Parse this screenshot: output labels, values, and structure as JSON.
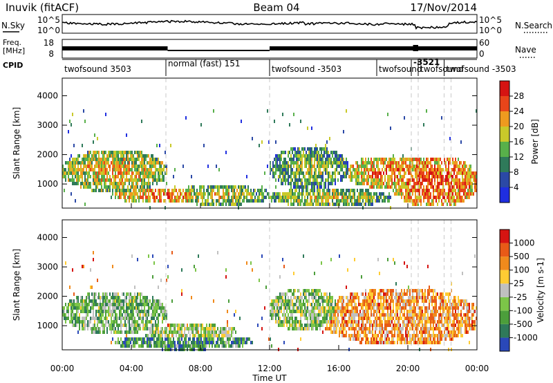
{
  "header": {
    "station": "Inuvik (fitACF)",
    "beam": "Beam 04",
    "date": "17/Nov/2014"
  },
  "left_labels": {
    "nsky": "N.Sky",
    "freq_l1": "Freq.",
    "freq_l2": "[MHz]",
    "cpid": "CPID"
  },
  "right_labels": {
    "nsearch": "N.Search",
    "nave": "Nave"
  },
  "noise_panel": {
    "left_ticks": [
      "10^5",
      "10^0"
    ],
    "right_ticks": [
      "10^5",
      "10^0"
    ]
  },
  "freq_panel": {
    "left_ticks": [
      "18",
      "8"
    ],
    "right_ticks": [
      "60",
      "0"
    ]
  },
  "cpid_segments": [
    {
      "label": "twofsound 3503",
      "start_h": 0.0,
      "end_h": 6.0
    },
    {
      "label": "normal (fast) 151",
      "start_h": 6.0,
      "end_h": 12.0
    },
    {
      "label": "twofsound -3503",
      "start_h": 12.0,
      "end_h": 18.2
    },
    {
      "label": "twofsound",
      "start_h": 18.2,
      "end_h": 20.2
    },
    {
      "label": "-3521",
      "start_h": 20.2,
      "end_h": 20.6
    },
    {
      "label": "twofsound",
      "start_h": 20.6,
      "end_h": 22.1
    },
    {
      "label": "twofsound -3503",
      "start_h": 22.1,
      "end_h": 24.0
    }
  ],
  "x_axis": {
    "title": "Time UT",
    "ticks": [
      "00:00",
      "04:00",
      "08:00",
      "12:00",
      "16:00",
      "20:00",
      "00:00"
    ]
  },
  "chart_data": [
    {
      "type": "heatmap",
      "name": "Power",
      "ylabel": "Slant Range [km]",
      "ylim": [
        180,
        4600
      ],
      "yticks": [
        "1000",
        "2000",
        "3000",
        "4000"
      ],
      "colorbar_label": "Power [dB]",
      "colorbar_ticks": [
        "4",
        "8",
        "12",
        "16",
        "20",
        "24",
        "28"
      ],
      "colorscale": [
        "#1f2ee0",
        "#2b49a6",
        "#2f7a5a",
        "#58b04a",
        "#c9c92a",
        "#ee9a1f",
        "#e8451a",
        "#d61412"
      ],
      "regions": [
        {
          "t": [
            0.0,
            6.0
          ],
          "r": [
            800,
            2200
          ],
          "level": 0.7
        },
        {
          "t": [
            3.0,
            9.0
          ],
          "r": [
            400,
            900
          ],
          "level": 0.82
        },
        {
          "t": [
            6.0,
            12.0
          ],
          "r": [
            350,
            1000
          ],
          "level": 0.62
        },
        {
          "t": [
            12.0,
            16.5
          ],
          "r": [
            900,
            2300
          ],
          "level": 0.55
        },
        {
          "t": [
            12.0,
            19.0
          ],
          "r": [
            300,
            900
          ],
          "level": 0.62
        },
        {
          "t": [
            16.5,
            21.0
          ],
          "r": [
            900,
            2000
          ],
          "level": 0.8
        },
        {
          "t": [
            19.0,
            24.0
          ],
          "r": [
            300,
            2000
          ],
          "level": 0.88
        }
      ]
    },
    {
      "type": "heatmap",
      "name": "Velocity",
      "ylabel": "Slant Range [km]",
      "ylim": [
        180,
        4600
      ],
      "yticks": [
        "1000",
        "2000",
        "3000",
        "4000"
      ],
      "colorbar_label": "Velocity [m s-1]",
      "colorbar_ticks": [
        "1000",
        "500",
        "100",
        "25",
        "-25",
        "-100",
        "-500",
        "-1000"
      ],
      "colorscale": [
        "#2a48b8",
        "#2f7a5a",
        "#4c9e3b",
        "#7cc548",
        "#c0c0c0",
        "#ffcc33",
        "#f08a1c",
        "#e85a17",
        "#d61412"
      ],
      "regions": [
        {
          "t": [
            0.0,
            6.0
          ],
          "r": [
            800,
            2200
          ],
          "velocity_level": 0.35
        },
        {
          "t": [
            5.0,
            10.0
          ],
          "r": [
            600,
            1100
          ],
          "velocity_level": 0.45
        },
        {
          "t": [
            3.0,
            11.0
          ],
          "r": [
            250,
            750
          ],
          "velocity_level": 0.25
        },
        {
          "t": [
            12.0,
            16.0
          ],
          "r": [
            900,
            2300
          ],
          "velocity_level": 0.4
        },
        {
          "t": [
            15.0,
            24.0
          ],
          "r": [
            400,
            2300
          ],
          "velocity_level": 0.7
        }
      ]
    }
  ]
}
